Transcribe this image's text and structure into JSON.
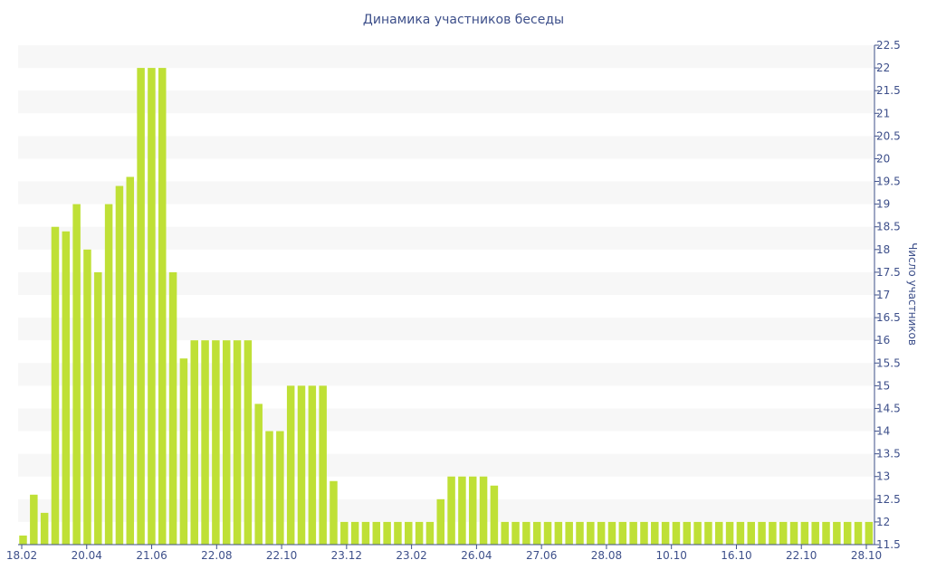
{
  "chart_data": {
    "type": "bar",
    "title": "Динамика участников беседы",
    "ylabel": "Число участников",
    "xlabel": "",
    "ylim": [
      11.5,
      22.5
    ],
    "y_ticks": [
      "11.5",
      "12",
      "12.5",
      "13",
      "13.5",
      "14",
      "14.5",
      "15",
      "15.5",
      "16",
      "16.5",
      "17",
      "17.5",
      "18",
      "18.5",
      "19",
      "19.5",
      "20",
      "20.5",
      "21",
      "21.5",
      "22",
      "22.5"
    ],
    "x_tick_labels": [
      "18.02",
      "20.04",
      "21.06",
      "22.08",
      "22.10",
      "23.12",
      "23.02",
      "26.04",
      "27.06",
      "28.08",
      "10.10",
      "16.10",
      "22.10",
      "28.10"
    ],
    "y_axis_position": "right",
    "grid": "horizontal bands",
    "colors": {
      "bar": "#bfe036",
      "band": "#f7f7f7",
      "text": "#3d4f8a",
      "axis": "#3d4f8a"
    },
    "values": [
      11.7,
      12.6,
      12.2,
      18.5,
      18.4,
      19,
      18,
      17.5,
      19,
      19.4,
      19.6,
      22,
      22,
      22,
      17.5,
      15.6,
      16,
      16,
      16,
      16,
      16,
      16,
      14.6,
      14,
      14,
      15,
      15,
      15,
      15,
      12.9,
      12,
      12,
      12,
      12,
      12,
      12,
      12,
      12,
      12,
      12.5,
      13,
      13,
      13,
      13,
      12.8,
      12,
      12,
      12,
      12,
      12,
      12,
      12,
      12,
      12,
      12,
      12,
      12,
      12,
      12,
      12,
      12,
      12,
      12,
      12,
      12,
      12,
      12,
      12,
      12,
      12,
      12,
      12,
      12,
      12,
      12,
      12,
      12,
      12,
      12,
      12
    ]
  }
}
